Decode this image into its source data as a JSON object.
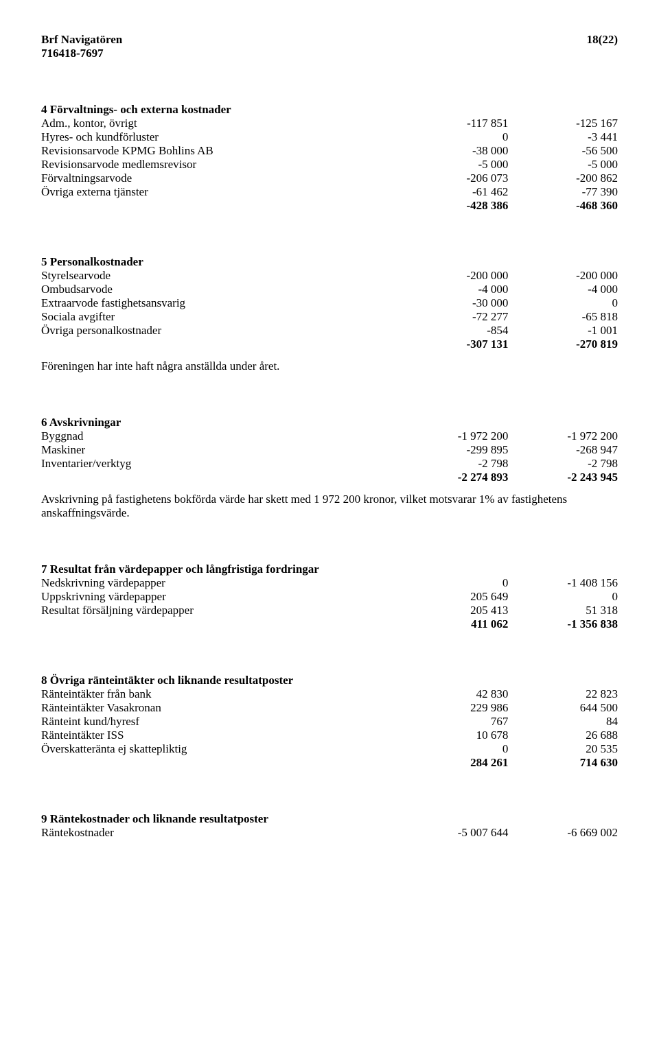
{
  "header": {
    "org": "Brf Navigatören",
    "page": "18(22)",
    "orgnum": "716418-7697"
  },
  "sections": [
    {
      "title": "4 Förvaltnings- och externa kostnader",
      "rows": [
        {
          "label": "Adm., kontor, övrigt",
          "c1": "-117 851",
          "c2": "-125 167"
        },
        {
          "label": "Hyres- och kundförluster",
          "c1": "0",
          "c2": "-3 441"
        },
        {
          "label": "Revisionsarvode KPMG Bohlins AB",
          "c1": "-38 000",
          "c2": "-56 500"
        },
        {
          "label": "Revisionsarvode medlemsrevisor",
          "c1": "-5 000",
          "c2": "-5 000"
        },
        {
          "label": "Förvaltningsarvode",
          "c1": "-206 073",
          "c2": "-200 862"
        },
        {
          "label": "Övriga externa tjänster",
          "c1": "-61 462",
          "c2": "-77 390"
        }
      ],
      "total": {
        "c1": "-428 386",
        "c2": "-468 360"
      }
    },
    {
      "title": "5 Personalkostnader",
      "rows": [
        {
          "label": "Styrelsearvode",
          "c1": "-200 000",
          "c2": "-200 000"
        },
        {
          "label": "Ombudsarvode",
          "c1": "-4 000",
          "c2": "-4 000"
        },
        {
          "label": "Extraarvode fastighetsansvarig",
          "c1": "-30 000",
          "c2": "0"
        },
        {
          "label": "Sociala avgifter",
          "c1": "-72 277",
          "c2": "-65 818"
        },
        {
          "label": "Övriga personalkostnader",
          "c1": "-854",
          "c2": "-1 001"
        }
      ],
      "total": {
        "c1": "-307 131",
        "c2": "-270 819"
      },
      "note": "Föreningen har inte haft några anställda under året."
    },
    {
      "title": "6 Avskrivningar",
      "rows": [
        {
          "label": "Byggnad",
          "c1": "-1 972 200",
          "c2": "-1 972 200"
        },
        {
          "label": "Maskiner",
          "c1": "-299 895",
          "c2": "-268 947"
        },
        {
          "label": "Inventarier/verktyg",
          "c1": "-2 798",
          "c2": "-2 798"
        }
      ],
      "total": {
        "c1": "-2 274 893",
        "c2": "-2 243 945"
      },
      "note": "Avskrivning på fastighetens bokförda värde har skett med 1 972 200 kronor, vilket motsvarar 1% av fastighetens anskaffningsvärde."
    },
    {
      "title": "7 Resultat från värdepapper och långfristiga fordringar",
      "rows": [
        {
          "label": "Nedskrivning värdepapper",
          "c1": "0",
          "c2": "-1 408 156"
        },
        {
          "label": "Uppskrivning värdepapper",
          "c1": "205 649",
          "c2": "0"
        },
        {
          "label": "Resultat  försäljning värdepapper",
          "c1": "205 413",
          "c2": "51 318"
        }
      ],
      "total": {
        "c1": "411 062",
        "c2": "-1 356 838"
      }
    },
    {
      "title": "8 Övriga ränteintäkter och liknande resultatposter",
      "rows": [
        {
          "label": "Ränteintäkter från bank",
          "c1": "42 830",
          "c2": "22 823"
        },
        {
          "label": "Ränteintäkter Vasakronan",
          "c1": "229 986",
          "c2": "644 500"
        },
        {
          "label": "Ränteint kund/hyresf",
          "c1": "767",
          "c2": "84"
        },
        {
          "label": "Ränteintäkter ISS",
          "c1": "10 678",
          "c2": "26 688"
        },
        {
          "label": "Överskatteränta ej skattepliktig",
          "c1": "0",
          "c2": "20 535"
        }
      ],
      "total": {
        "c1": "284 261",
        "c2": "714 630"
      }
    },
    {
      "title": "9 Räntekostnader och liknande resultatposter",
      "rows": [
        {
          "label": "Räntekostnader",
          "c1": "-5 007 644",
          "c2": "-6 669 002"
        }
      ]
    }
  ]
}
